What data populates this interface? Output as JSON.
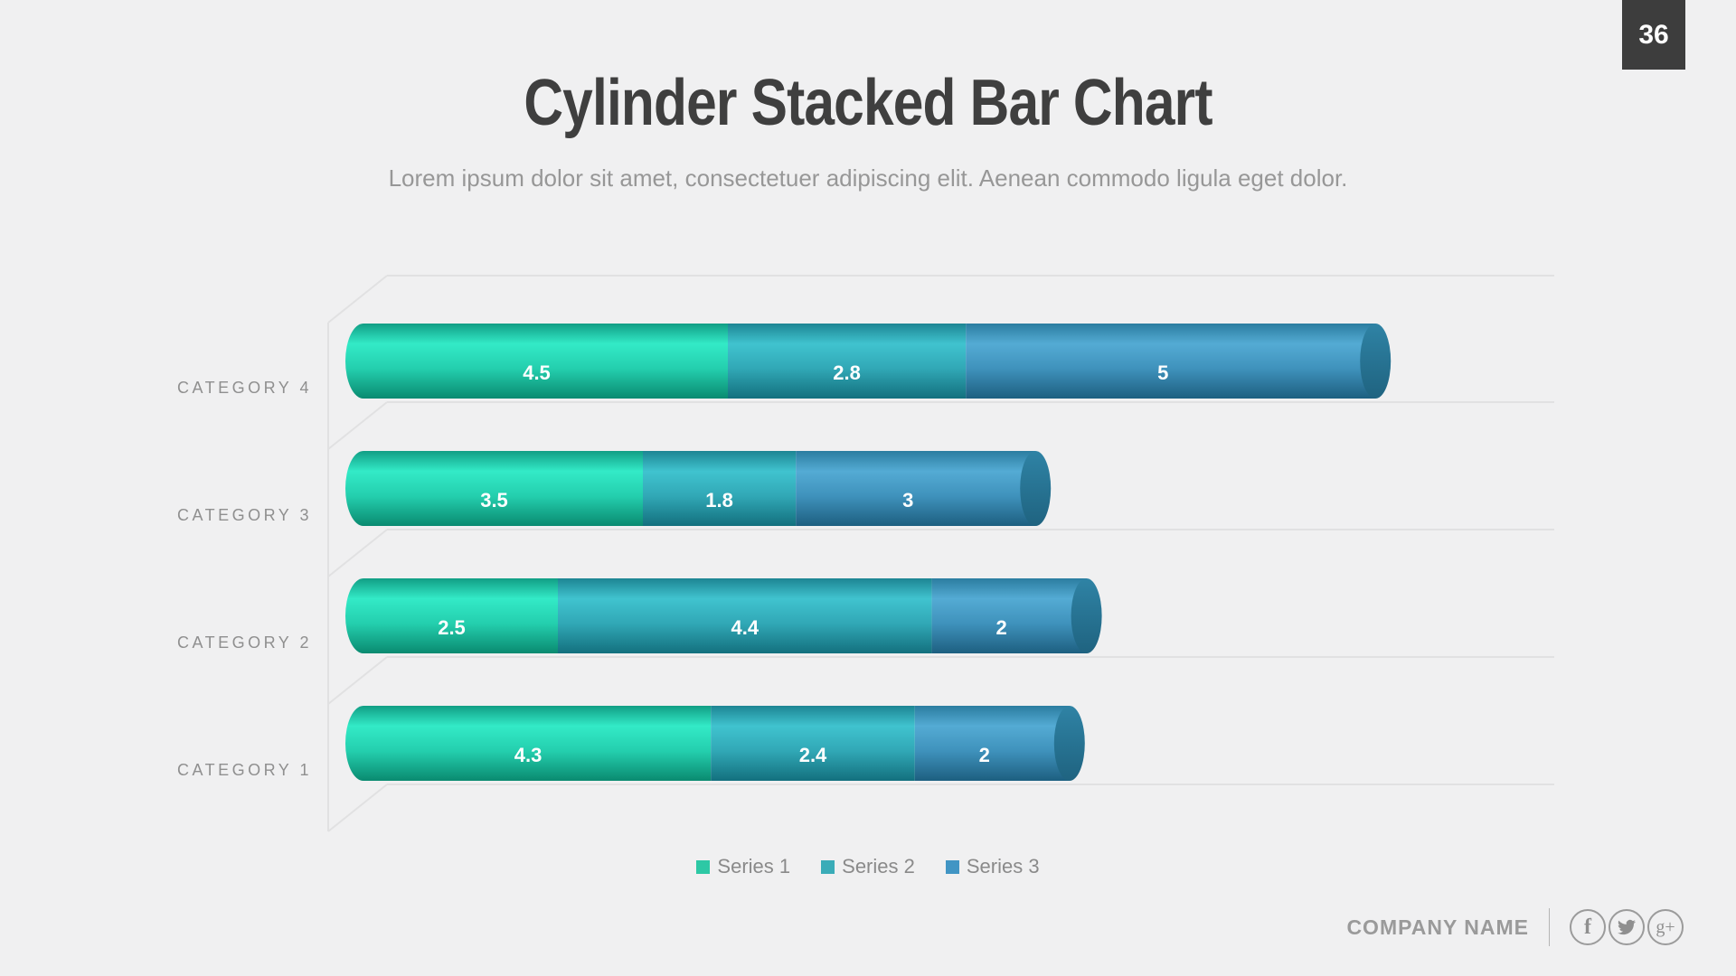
{
  "page": {
    "number": "36"
  },
  "header": {
    "title": "Cylinder Stacked Bar Chart",
    "subtitle": "Lorem ipsum dolor sit amet, consectetuer adipiscing elit. Aenean commodo ligula eget dolor."
  },
  "chart_data": {
    "type": "bar",
    "orientation": "horizontal",
    "stacked": true,
    "style": "3d-cylinder",
    "categories": [
      "CATEGORY 4",
      "CATEGORY 3",
      "CATEGORY 2",
      "CATEGORY 1"
    ],
    "series": [
      {
        "name": "Series 1",
        "color": "#2dc8a5",
        "gradient": [
          "#119e85",
          "#33eac7",
          "#24cfae",
          "#0a8a70"
        ],
        "values": [
          4.5,
          3.5,
          2.5,
          4.3
        ]
      },
      {
        "name": "Series 2",
        "color": "#3aacb8",
        "gradient": [
          "#1d8593",
          "#40c3cf",
          "#31a8b6",
          "#13707e"
        ],
        "values": [
          2.8,
          1.8,
          4.4,
          2.4
        ]
      },
      {
        "name": "Series 3",
        "color": "#4195c4",
        "gradient": [
          "#2b7da0",
          "#54abd4",
          "#3f92bc",
          "#1d5f80"
        ],
        "values": [
          5,
          3,
          2,
          2
        ]
      }
    ],
    "cap_gradient": [
      "#2f83a5",
      "#1f6380"
    ],
    "xlim": [
      0,
      14.2
    ],
    "grid": true,
    "legend_position": "bottom",
    "value_labels": "inside",
    "category_label_color": "#8f8f8f",
    "value_label_color": "#ffffff",
    "grid_color": "#e1e1e2"
  },
  "footer": {
    "company": "COMPANY NAME",
    "social": [
      {
        "name": "facebook"
      },
      {
        "name": "twitter"
      },
      {
        "name": "google-plus"
      }
    ]
  },
  "colors": {
    "background": "#f0f0f1",
    "page_number_bg": "#3d3d3d",
    "title": "#3f3f3f",
    "subtitle": "#979797",
    "legend_text": "#8a8a8a",
    "footer_text": "#9a9a9a"
  }
}
